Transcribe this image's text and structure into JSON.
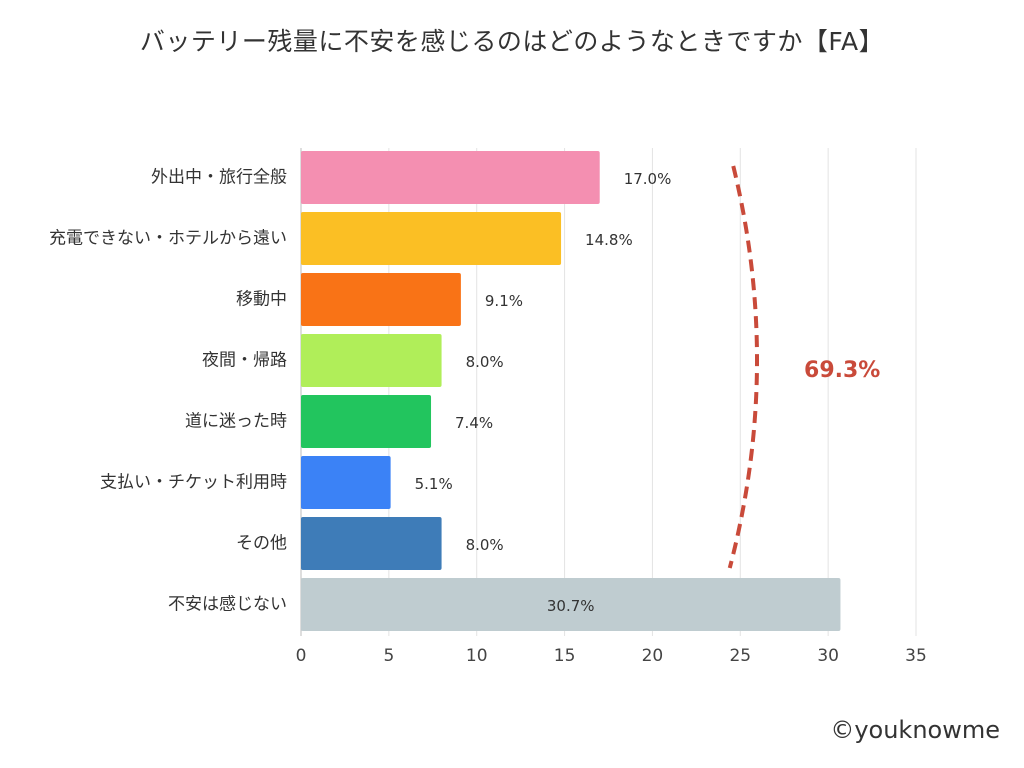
{
  "chart_data": {
    "type": "bar",
    "orientation": "horizontal",
    "title": "バッテリー残量に不安を感じるのはどのようなときですか【FA】",
    "categories": [
      "外出中・旅行全般",
      "充電できない・ホテルから遠い",
      "移動中",
      "夜間・帰路",
      "道に迷った時",
      "支払い・チケット利用時",
      "その他",
      "不安は感じない"
    ],
    "values": [
      17.0,
      14.8,
      9.1,
      8.0,
      7.4,
      5.1,
      8.0,
      30.7
    ],
    "value_labels": [
      "17.0%",
      "14.8%",
      "9.1%",
      "8.0%",
      "7.4%",
      "5.1%",
      "8.0%",
      "30.7%"
    ],
    "colors": [
      "#F48FB1",
      "#FBBF24",
      "#F97316",
      "#B0EE59",
      "#22C55E",
      "#3B82F6",
      "#3E7CB8",
      "#BFCCD0"
    ],
    "xlim": [
      0,
      35
    ],
    "xticks": [
      0,
      5,
      10,
      15,
      20,
      25,
      30,
      35
    ],
    "xtick_labels": [
      "0",
      "5",
      "10",
      "15",
      "20",
      "25",
      "30",
      "35"
    ],
    "grid": true,
    "xlabel": "",
    "ylabel": "",
    "annotation": {
      "text": "69.3%",
      "color": "#C94A3A",
      "brackets_categories": "first 7 categories"
    }
  },
  "credit": "©youknowme"
}
